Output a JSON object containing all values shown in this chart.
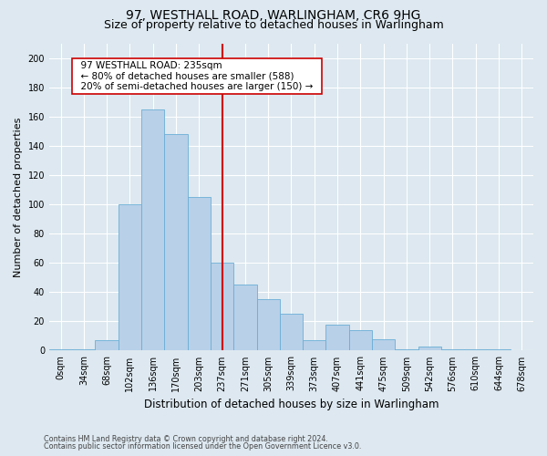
{
  "title1": "97, WESTHALL ROAD, WARLINGHAM, CR6 9HG",
  "title2": "Size of property relative to detached houses in Warlingham",
  "xlabel": "Distribution of detached houses by size in Warlingham",
  "ylabel": "Number of detached properties",
  "footnote1": "Contains HM Land Registry data © Crown copyright and database right 2024.",
  "footnote2": "Contains public sector information licensed under the Open Government Licence v3.0.",
  "bins": [
    "0sqm",
    "34sqm",
    "68sqm",
    "102sqm",
    "136sqm",
    "170sqm",
    "203sqm",
    "237sqm",
    "271sqm",
    "305sqm",
    "339sqm",
    "373sqm",
    "407sqm",
    "441sqm",
    "475sqm",
    "509sqm",
    "542sqm",
    "576sqm",
    "610sqm",
    "644sqm",
    "678sqm"
  ],
  "values": [
    1,
    1,
    7,
    100,
    165,
    148,
    105,
    60,
    45,
    35,
    25,
    7,
    18,
    14,
    8,
    1,
    3,
    1,
    1,
    1,
    0
  ],
  "bar_color": "#b8d0e8",
  "bar_edge_color": "#6aaed6",
  "marker_idx": 7,
  "marker_line_color": "#cc0000",
  "annotation_line1": "97 WESTHALL ROAD: 235sqm",
  "annotation_line2": "← 80% of detached houses are smaller (588)",
  "annotation_line3": "20% of semi-detached houses are larger (150) →",
  "annotation_box_facecolor": "#ffffff",
  "annotation_box_edgecolor": "#cc0000",
  "background_color": "#dde8f0",
  "ylim": [
    0,
    210
  ],
  "yticks": [
    0,
    20,
    40,
    60,
    80,
    100,
    120,
    140,
    160,
    180,
    200
  ],
  "grid_color": "#ffffff",
  "title1_fontsize": 10,
  "title2_fontsize": 9,
  "xlabel_fontsize": 8.5,
  "ylabel_fontsize": 8,
  "tick_fontsize": 7,
  "annotation_fontsize": 7.5,
  "footnote_fontsize": 5.8
}
